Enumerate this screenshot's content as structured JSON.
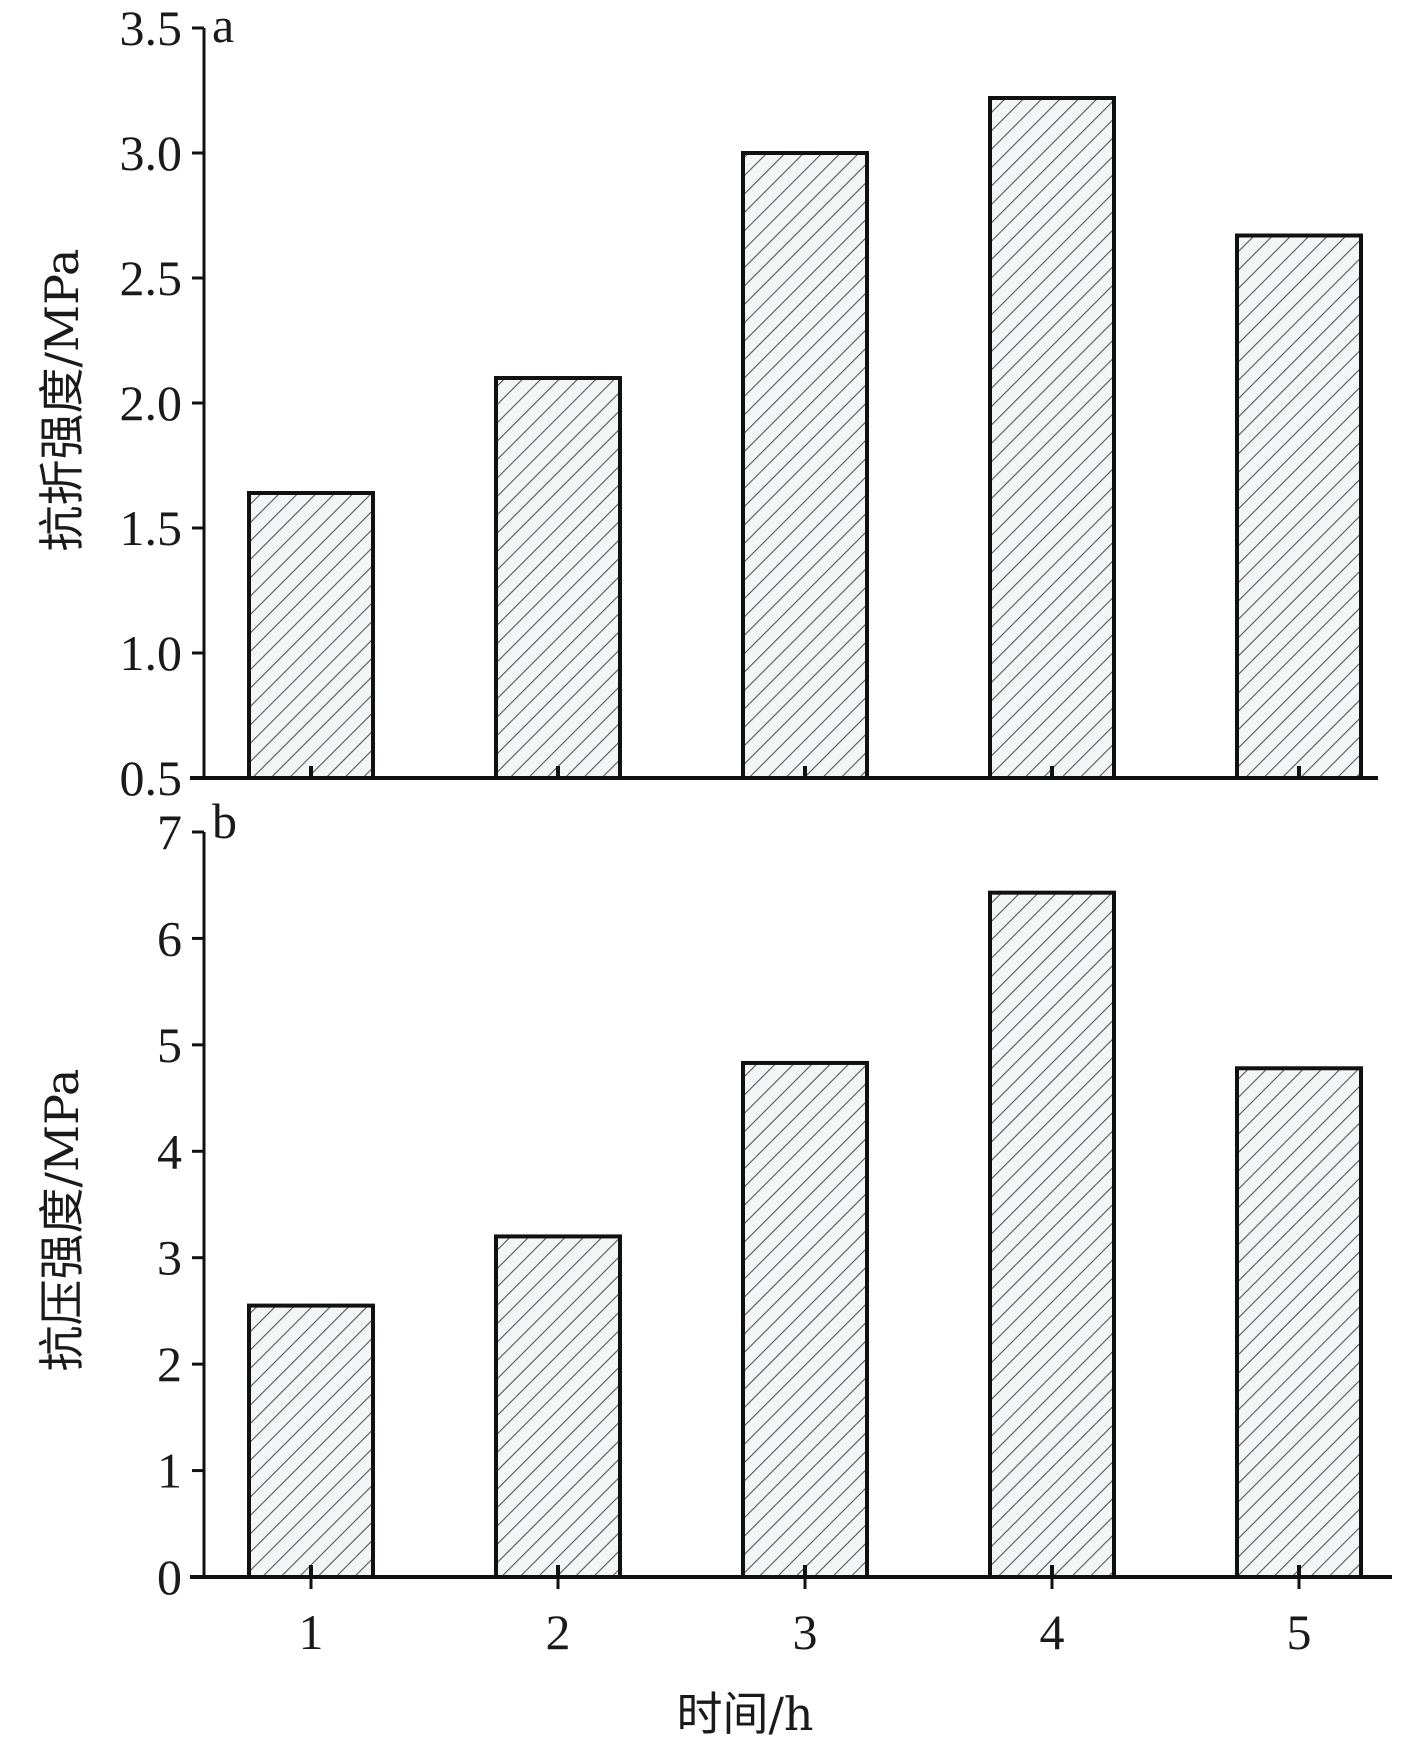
{
  "chart_data": [
    {
      "panel": "a",
      "type": "bar",
      "categories": [
        "1",
        "2",
        "3",
        "4",
        "5"
      ],
      "values": [
        1.64,
        2.1,
        3.0,
        3.22,
        2.67
      ],
      "ylabel": "抗折强度/MPa",
      "ylim": [
        0.5,
        3.5
      ],
      "yticks": [
        "0.5",
        "1.0",
        "1.5",
        "2.0",
        "2.5",
        "3.0",
        "3.5"
      ],
      "grid": false,
      "fill": "diagonal-hatch"
    },
    {
      "panel": "b",
      "type": "bar",
      "categories": [
        "1",
        "2",
        "3",
        "4",
        "5"
      ],
      "values": [
        2.55,
        3.2,
        4.83,
        6.43,
        4.78
      ],
      "xlabel": "时间/h",
      "ylabel": "抗压强度/MPa",
      "ylim": [
        0,
        7
      ],
      "yticks": [
        "0",
        "1",
        "2",
        "3",
        "4",
        "5",
        "6",
        "7"
      ],
      "grid": false,
      "fill": "diagonal-hatch"
    }
  ],
  "colors": {
    "bar_outline": "#111111",
    "hatch": "#4a5a5e",
    "bar_fill": "#f4f6f6",
    "axis": "#111111"
  }
}
